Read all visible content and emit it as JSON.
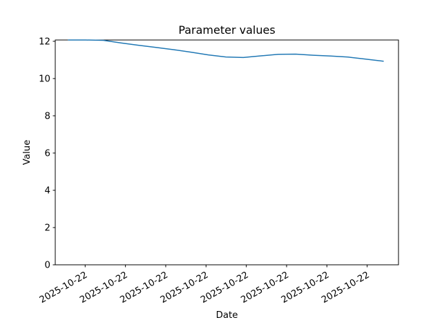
{
  "figure": {
    "background": "#ffffff"
  },
  "chart_data": {
    "type": "line",
    "title": "Parameter values",
    "xlabel": "Date",
    "ylabel": "Value",
    "ylim": [
      0,
      12.07
    ],
    "yticks": [
      0,
      2,
      4,
      6,
      8,
      10,
      12
    ],
    "xtick_labels": [
      "2025-10-22",
      "2025-10-22",
      "2025-10-22",
      "2025-10-22",
      "2025-10-22",
      "2025-10-22",
      "2025-10-22",
      "2025-10-22"
    ],
    "xtick_rotation_deg": 30,
    "grid": false,
    "legend": null,
    "axis_color": "#000000",
    "text_color": "#000000",
    "series": [
      {
        "name": "Parameter values",
        "color": "#1f77b4",
        "line_width": 1.5,
        "values": [
          12.07,
          12.07,
          12.05,
          11.91,
          11.79,
          11.67,
          11.55,
          11.42,
          11.27,
          11.16,
          11.13,
          11.22,
          11.3,
          11.31,
          11.25,
          11.21,
          11.15,
          11.04,
          10.93
        ]
      }
    ]
  }
}
